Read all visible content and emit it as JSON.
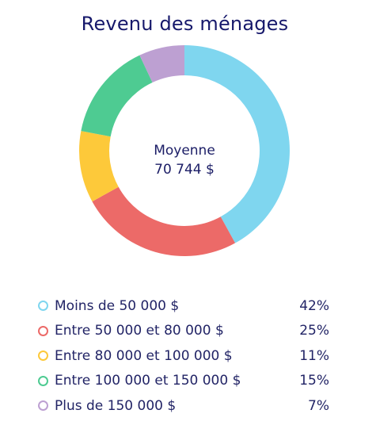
{
  "chart_data": {
    "type": "pie",
    "title": "Revenu des ménages",
    "center": {
      "label": "Moyenne",
      "value": "70 744 $"
    },
    "categories": [
      "Moins de 50 000 $",
      "Entre 50 000 et 80 000 $",
      "Entre 80 000 et 100 000 $",
      "Entre 100 000 et 150 000 $",
      "Plus de 150 000 $"
    ],
    "values": [
      42,
      25,
      11,
      15,
      7
    ],
    "value_labels": [
      "42%",
      "25%",
      "11%",
      "15%",
      "7%"
    ],
    "colors": [
      "#7fd6ef",
      "#ec6a68",
      "#fdc93a",
      "#4ecb92",
      "#bda0d2"
    ],
    "donut": true,
    "legend_position": "bottom"
  }
}
